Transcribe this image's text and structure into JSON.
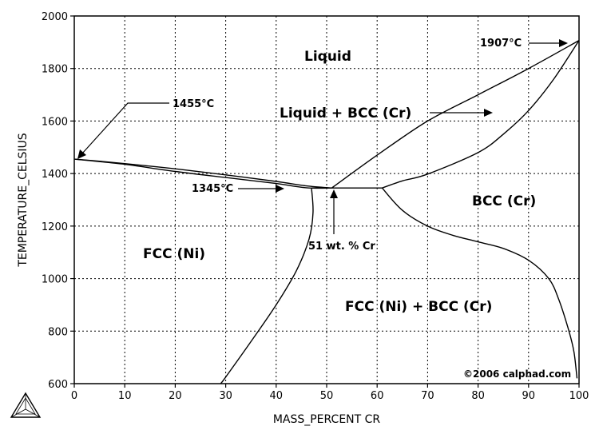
{
  "chart_data": {
    "type": "line",
    "xlabel": "MASS_PERCENT CR",
    "ylabel": "TEMPERATURE_CELSIUS",
    "xlim": [
      0,
      100
    ],
    "ylim": [
      600,
      2000
    ],
    "xticks": [
      0,
      10,
      20,
      30,
      40,
      50,
      60,
      70,
      80,
      90,
      100
    ],
    "yticks": [
      600,
      800,
      1000,
      1200,
      1400,
      1600,
      1800,
      2000
    ],
    "grid": true,
    "series": [
      {
        "x": [
          0,
          5,
          10,
          20,
          30,
          40,
          46,
          51
        ],
        "y": [
          1455,
          1447,
          1438,
          1418,
          1395,
          1370,
          1353,
          1345
        ]
      },
      {
        "x": [
          51,
          60,
          70,
          80,
          90,
          100
        ],
        "y": [
          1345,
          1470,
          1600,
          1700,
          1800,
          1907
        ]
      },
      {
        "x": [
          0,
          10,
          20,
          30,
          40,
          46,
          51
        ],
        "y": [
          1455,
          1435,
          1408,
          1385,
          1362,
          1346,
          1345
        ]
      },
      {
        "x": [
          61,
          65,
          70,
          80,
          85,
          90,
          95,
          100
        ],
        "y": [
          1345,
          1372,
          1398,
          1480,
          1550,
          1640,
          1760,
          1907
        ]
      },
      {
        "x": [
          47,
          47.3,
          46.5,
          44,
          40,
          35,
          30,
          29
        ],
        "y": [
          1345,
          1250,
          1150,
          1030,
          900,
          760,
          625,
          600
        ]
      },
      {
        "x": [
          61,
          65,
          70,
          75,
          80,
          85,
          90,
          94,
          96,
          98,
          99,
          99.6
        ],
        "y": [
          1345,
          1260,
          1200,
          1165,
          1140,
          1115,
          1070,
          1000,
          920,
          800,
          720,
          620
        ]
      },
      {
        "x": [
          47,
          61
        ],
        "y": [
          1345,
          1345
        ],
        "color": "#ff0000"
      }
    ],
    "annotations": {
      "liquid": "Liquid",
      "liquid_bcc": "Liquid + BCC (Cr)",
      "bcc": "BCC (Cr)",
      "fcc": "FCC (Ni)",
      "fcc_bcc": "FCC (Ni) + BCC (Cr)",
      "t_1455": "1455°C",
      "t_1907": "1907°C",
      "t_1345": "1345°C",
      "eutectic": "51 wt. % Cr",
      "credit": "©2006 calphad.com"
    }
  }
}
